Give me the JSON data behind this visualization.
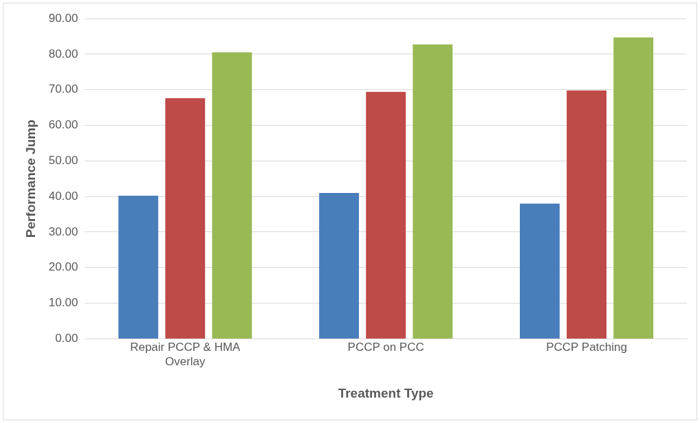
{
  "chart_data": {
    "type": "bar",
    "xlabel": "Treatment Type",
    "ylabel": "Performance Jump",
    "categories": [
      "Repair PCCP & HMA Overlay",
      "PCCP on PCC",
      "PCCP Patching"
    ],
    "series": [
      {
        "color": "#4a7ebb",
        "values": [
          40.2,
          41.0,
          38.0
        ]
      },
      {
        "color": "#be4b48",
        "values": [
          67.6,
          69.4,
          69.8
        ]
      },
      {
        "color": "#98b954",
        "values": [
          80.5,
          82.7,
          84.7
        ]
      }
    ],
    "ylim": [
      0,
      90
    ],
    "yticks": [
      {
        "value": 0,
        "label": "0.00"
      },
      {
        "value": 10,
        "label": "10.00"
      },
      {
        "value": 20,
        "label": "20.00"
      },
      {
        "value": 30,
        "label": "30.00"
      },
      {
        "value": 40,
        "label": "40.00"
      },
      {
        "value": 50,
        "label": "50.00"
      },
      {
        "value": 60,
        "label": "60.00"
      },
      {
        "value": 70,
        "label": "70.00"
      },
      {
        "value": 80,
        "label": "80.00"
      },
      {
        "value": 90,
        "label": "90.00"
      }
    ],
    "grid": "y"
  }
}
